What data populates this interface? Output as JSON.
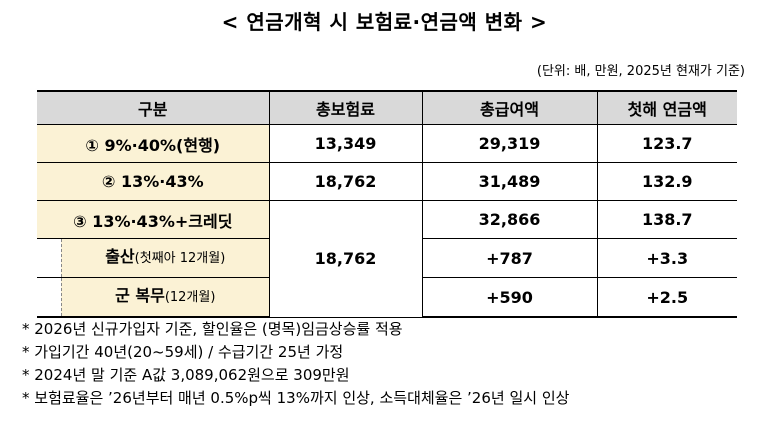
{
  "title": "< 연금개혁 시 보험료·연금액 변화 >",
  "unit_note": "(단위: 배, 만원, 2025년 현재가 기준)",
  "headers": [
    "구분",
    "총보험료",
    "총급여액",
    "첫해 연금액"
  ],
  "rows": [
    {
      "label": "① 9%·40%(현행)",
      "premium": "13,349",
      "benefit": "29,319",
      "pension": "123.7"
    },
    {
      "label": "② 13%·43%",
      "premium": "18,762",
      "benefit": "31,489",
      "pension": "132.9"
    },
    {
      "label": "③ 13%·43%+크레딧",
      "premium": "18,762",
      "benefit": "32,866",
      "pension": "138.7"
    }
  ],
  "sub_rows": [
    {
      "label": "출산",
      "label_note": "(첫째아 12개월)",
      "benefit": "+787",
      "pension": "+3.3"
    },
    {
      "label": "군 복무",
      "label_note": "(12개월)",
      "benefit": "+590",
      "pension": "+2.5"
    }
  ],
  "notes": [
    "* 2026년 신규가입자 기준, 할인율은 (명목)임금상승률 적용",
    "* 가입기간 40년(20~59세) / 수급기간 25년 가정",
    "* 2024년 말 기준 A값 3,089,062원으로 309만원",
    "* 보험료율은 ’26년부터 매년 0.5%p씩 13%까지 인상, 소득대체율은 ’26년 일시 인상"
  ]
}
